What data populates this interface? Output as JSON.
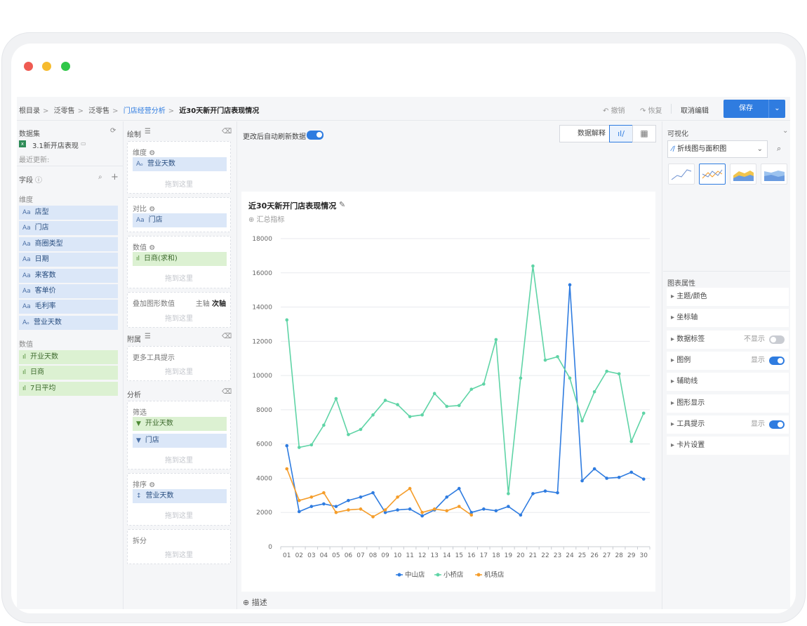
{
  "breadcrumb": {
    "items": [
      "根目录",
      "泛零售",
      "泛零售",
      "门店经营分析",
      "近30天新开门店表现情况"
    ]
  },
  "toolbar": {
    "undo": "撤销",
    "redo": "恢复",
    "cancel_edit": "取消编辑",
    "save": "保存"
  },
  "dataset": {
    "title": "数据集",
    "name": "3.1新开店表现",
    "last_update": "最近更新:"
  },
  "fields": {
    "title": "字段",
    "dim_label": "维度",
    "dimensions": [
      "店型",
      "门店",
      "商圈类型",
      "日期",
      "来客数",
      "客单价",
      "毛利率",
      "营业天数"
    ],
    "mea_label": "数值",
    "measures": [
      "开业天数",
      "日商",
      "7日平均"
    ]
  },
  "config": {
    "draw": "绘制",
    "dimension": {
      "label": "维度",
      "field": "营业天数"
    },
    "compare": {
      "label": "对比",
      "field": "门店"
    },
    "value": {
      "label": "数值",
      "field": "日商(求和)"
    },
    "overlay": {
      "label": "叠加图形数值",
      "primary": "主轴",
      "secondary": "次轴"
    },
    "attach": "附属",
    "tooltip": "更多工具提示",
    "analysis": "分析",
    "filter": {
      "label": "筛选",
      "f1": "开业天数",
      "f2": "门店"
    },
    "sort": {
      "label": "排序",
      "field": "营业天数"
    },
    "split": "拆分",
    "drop": "拖到这里"
  },
  "center": {
    "auto_refresh": "更改后自动刷新数据",
    "explain_btn": "数据解释",
    "summary": "汇总指标",
    "describe": "描述"
  },
  "chart_data": {
    "type": "line",
    "title": "近30天新开门店表现情况",
    "categories": [
      "01",
      "02",
      "03",
      "04",
      "05",
      "06",
      "07",
      "08",
      "09",
      "10",
      "11",
      "12",
      "13",
      "14",
      "15",
      "16",
      "17",
      "18",
      "19",
      "20",
      "21",
      "22",
      "23",
      "24",
      "25",
      "26",
      "27",
      "28",
      "29",
      "30"
    ],
    "yticks": [
      "0",
      "2000",
      "4000",
      "6000",
      "8000",
      "10000",
      "12000",
      "14000",
      "16000",
      "18000"
    ],
    "ylim": [
      0,
      18000
    ],
    "legend_position": "bottom",
    "series": [
      {
        "name": "中山店",
        "color": "#2f7ce0",
        "values": [
          5900,
          2050,
          2350,
          2500,
          2350,
          2700,
          2900,
          3150,
          2000,
          2150,
          2200,
          1800,
          2150,
          2900,
          3400,
          2000,
          2200,
          2100,
          2350,
          1850,
          3100,
          3250,
          3150,
          15300,
          3850,
          4550,
          4000,
          4050,
          4350,
          3950
        ]
      },
      {
        "name": "小桥店",
        "color": "#5fd4a6",
        "values": [
          13250,
          5800,
          5950,
          7100,
          8650,
          6550,
          6850,
          7700,
          8550,
          8300,
          7600,
          7700,
          8950,
          8200,
          8250,
          9200,
          9500,
          12100,
          3100,
          9850,
          16400,
          10900,
          11100,
          9850,
          7350,
          9050,
          10250,
          10100,
          6150,
          7800
        ]
      },
      {
        "name": "机场店",
        "color": "#f59d2a",
        "values": [
          4550,
          2700,
          2900,
          3150,
          2000,
          2150,
          2200,
          1750,
          2150,
          2900,
          3400,
          2000,
          2200,
          2100,
          2350,
          1850,
          null,
          null,
          null,
          null,
          null,
          null,
          null,
          null,
          null,
          null,
          null,
          null,
          null,
          null
        ]
      }
    ]
  },
  "viz": {
    "title": "可视化",
    "chart_type": "折线图与面积图",
    "props_title": "图表属性"
  },
  "props": [
    {
      "label": "主题/颜色"
    },
    {
      "label": "坐标轴"
    },
    {
      "label": "数据标签",
      "state": "不显示"
    },
    {
      "label": "图例",
      "state": "显示"
    },
    {
      "label": "辅助线"
    },
    {
      "label": "图形显示"
    },
    {
      "label": "工具提示",
      "state": "显示"
    },
    {
      "label": "卡片设置"
    }
  ]
}
